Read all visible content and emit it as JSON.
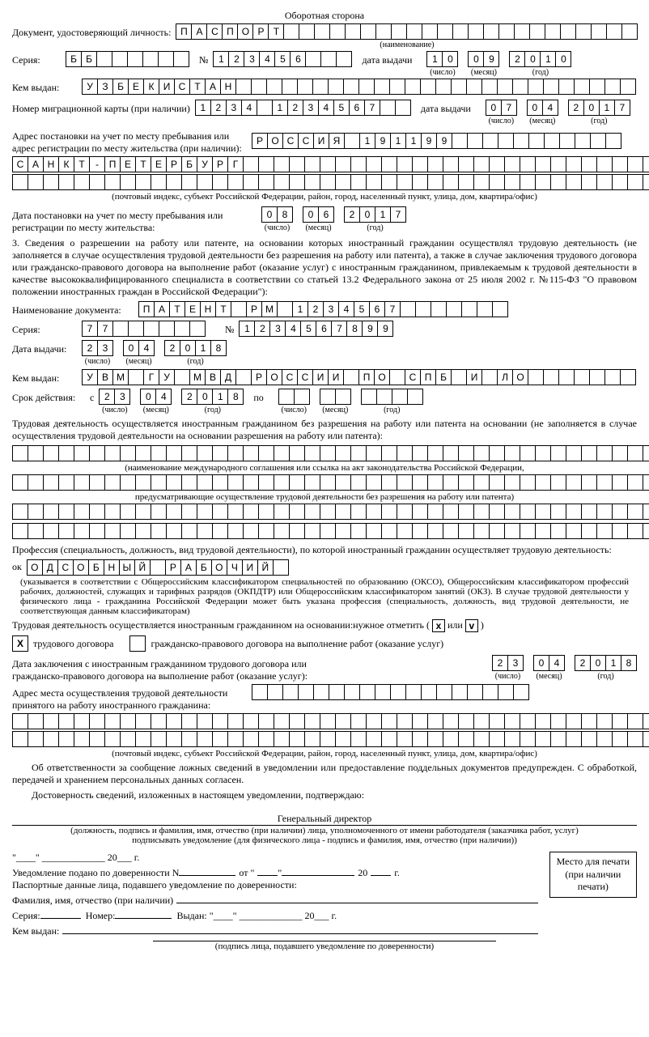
{
  "header": "Оборотная сторона",
  "id_doc": {
    "label": "Документ, удостоверяющий личность:",
    "value": "ПАСПОРТ",
    "total_cells": 30,
    "sub": "(наименование)"
  },
  "series": {
    "label": "Серия:",
    "value": "ББ",
    "cells": 8,
    "number_label": "№",
    "number": "123456",
    "number_cells": 9,
    "issue_label": "дата выдачи",
    "day": "10",
    "month": "09",
    "year": "2010",
    "day_sub": "(число)",
    "month_sub": "(месяц)",
    "year_sub": "(год)"
  },
  "issued_by": {
    "label": "Кем выдан:",
    "value": "УЗБЕКИСТАН",
    "cells": 36
  },
  "mig_card": {
    "label": "Номер миграционной карты (при наличии)",
    "value": "1234 1234567",
    "cells": 14,
    "issue_label": "дата выдачи",
    "day": "07",
    "month": "04",
    "year": "2017"
  },
  "address": {
    "label": "Адрес постановки на учет по месту пребывания или адрес регистрации по месту жительства (при наличии):",
    "row1": "РОССИЯ 191199",
    "row1_cells": 24,
    "row2": "САНКТ-ПЕТЕРБУРГ",
    "row2_cells": 42,
    "row3": "",
    "row3_cells": 42,
    "sub": "(почтовый индекс, субъект Российской Федерации, район, город, населенный пункт, улица, дом, квартира/офис)"
  },
  "reg_date": {
    "label": "Дата постановки на учет по месту пребывания или регистрации по месту жительства:",
    "day": "08",
    "month": "06",
    "year": "2017"
  },
  "section3": "3.  Сведения о разрешении на работу или патенте, на основании которых иностранный гражданин осуществлял трудовую деятельность (не заполняется в случае осуществления трудовой деятельности без разрешения на работу или патента), а также в случае заключения трудового договора или гражданско-правового договора на выполнение работ (оказание услуг) с иностранным гражданином, привлекаемым к трудовой деятельности в качестве высококвалифицированного специалиста в соответствии со статьей 13.2 Федерального закона от 25 июля 2002 г. №115-ФЗ \"О правовом положении иностранных граждан в Российской Федерации\"):",
  "doc_name": {
    "label": "Наименование документа:",
    "value": "ПАТЕНТ РМ 1234567",
    "cells": 24
  },
  "doc_series": {
    "label": "Серия:",
    "value": "77",
    "cells": 8,
    "number_label": "№",
    "number": "1234567899",
    "number_cells": 10
  },
  "doc_issue": {
    "label": "Дата выдачи:",
    "day": "23",
    "month": "04",
    "year": "2018"
  },
  "doc_by": {
    "label": "Кем выдан:",
    "value": "УВМ ГУ МВД РОССИИ ПО СПБ И ЛО",
    "cells": 36
  },
  "validity": {
    "label": "Срок действия:",
    "from": "с",
    "day1": "23",
    "month1": "04",
    "year1": "2018",
    "to": "по",
    "day2": "",
    "month2": "",
    "year2": ""
  },
  "basis": {
    "p1": "Трудовая деятельность осуществляется иностранным гражданином без разрешения на работу или патента на основании (не заполняется в случае осуществления трудовой деятельности на основании разрешения на работу или патента):",
    "row_cells": 42,
    "s1": "(наименование международного соглашения или ссылка на акт законодательства Российской Федерации,",
    "s2": "предусматривающие осуществление трудовой деятельности без разрешения на работу или патента)"
  },
  "profession": {
    "p": "Профессия (специальность, должность, вид трудовой деятельности), по которой иностранный гражданин осуществляет трудовую деятельность:",
    "prefix": "ок",
    "value": "ОДСОБНЫЙ РАБОЧИЙ",
    "cells": 17,
    "note": "(указывается в соответствии с Общероссийским классификатором специальностей по образованию (ОКСО), Общероссийским классификатором профессий рабочих, должностей, служащих и тарифных разрядов (ОКПДТР) или Общероссийским классификатором занятий (ОКЗ). В случае трудовой деятельности у физического лица - гражданина Российской Федерации может быть указана профессия (специальность, должность, вид трудовой деятельности, не соответствующая данным классификаторам)"
  },
  "contract_type": {
    "text": "Трудовая деятельность осуществляется иностранным гражданином на основании:нужное отметить (",
    "x": "x",
    "or": " или ",
    "v": "v",
    "close": " )",
    "opt1_checked": "X",
    "opt1_label": "трудового договора",
    "opt2_checked": "",
    "opt2_label": "гражданско-правового договора на выполнение работ (оказание услуг)"
  },
  "contract_date": {
    "label": "Дата заключения с иностранным гражданином трудового договора или гражданско-правового договора на выполнение работ (оказание услуг):",
    "day": "23",
    "month": "04",
    "year": "2018"
  },
  "work_address": {
    "label": "Адрес места осуществления трудовой деятельности принятого на работу иностранного гражданина:",
    "cells_short": 18,
    "cells_full": 42,
    "sub": "(почтовый индекс, субъект Российской Федерации, район, город, населенный пункт, улица, дом, квартира/офис)"
  },
  "decl": {
    "p1": "Об ответственности за сообщение ложных сведений в уведомлении или предоставление поддельных документов предупрежден. С обработкой, передачей и хранением персональных данных согласен.",
    "p2": "Достоверность сведений, изложенных в настоящем уведомлении, подтверждаю:"
  },
  "signature": {
    "role": "Генеральный директор",
    "sub1": "(должность, подпись и фамилия, имя, отчество (при наличии) лица, уполномоченного от имени работодателя (заказчика работ, услуг)",
    "sub2": "подписывать уведомление (для физического лица - подпись и фамилия, имя, отчество (при наличии))"
  },
  "footer": {
    "date_tpl1": "\"____\" _____________ 20___ г.",
    "line1_a": "Уведомление подано по доверенности N",
    "line1_b": "от \"",
    "line1_c": "\"",
    "line1_d": "20",
    "line1_e": "г.",
    "line2": "Паспортные данные лица, подавшего уведомление по доверенности:",
    "line3": "Фамилия, имя, отчество (при наличии)",
    "line4_a": "Серия:",
    "line4_b": "Номер:",
    "line4_c": "Выдан: \"____\" _____________ 20___ г.",
    "line5": "Кем выдан:",
    "sub": "(подпись лица, подавшего уведомление по доверенности)",
    "stamp1": "Место для печати",
    "stamp2": "(при наличии",
    "stamp3": "печати)"
  },
  "style": {
    "cell_size": 18,
    "font": "Times New Roman",
    "border": "#000000"
  }
}
